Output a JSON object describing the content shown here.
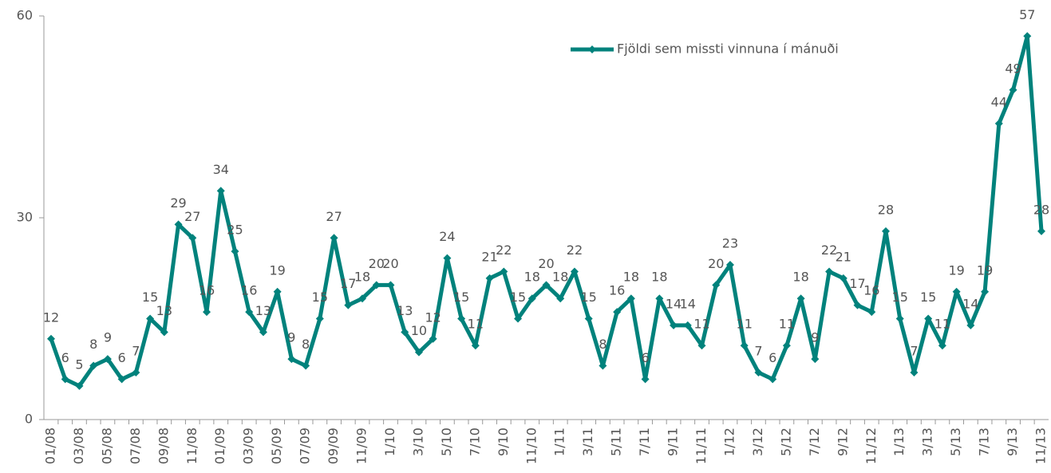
{
  "chart_data": {
    "type": "line",
    "categories": [
      "01/08",
      null,
      "03/08",
      null,
      "05/08",
      null,
      "07/08",
      null,
      "09/08",
      null,
      "11/08",
      null,
      "01/09",
      null,
      "03/09",
      null,
      "05/09",
      null,
      "07/09",
      null,
      "09/09",
      null,
      "11/09",
      null,
      "1/10",
      null,
      "3/10",
      null,
      "5/10",
      null,
      "7/10",
      null,
      "9/10",
      null,
      "11/10",
      null,
      "1/11",
      null,
      "3/11",
      null,
      "5/11",
      null,
      "7/11",
      null,
      "9/11",
      null,
      "11/11",
      null,
      "1/12",
      null,
      "3/12",
      null,
      "5/12",
      null,
      "7/12",
      null,
      "9/12",
      null,
      "11/12",
      null,
      "1/13",
      null,
      "3/13",
      null,
      "5/13",
      null,
      "7/13",
      null,
      "9/13",
      null,
      "11/13"
    ],
    "series": [
      {
        "name": "Fjöldi sem missti vinnuna í mánuði",
        "color": "#00827c",
        "values": [
          12,
          6,
          5,
          8,
          9,
          6,
          7,
          15,
          13,
          29,
          27,
          16,
          34,
          25,
          16,
          13,
          19,
          9,
          8,
          15,
          27,
          17,
          18,
          20,
          20,
          13,
          10,
          12,
          24,
          15,
          11,
          21,
          22,
          15,
          18,
          20,
          18,
          22,
          15,
          8,
          16,
          18,
          6,
          18,
          14,
          14,
          11,
          20,
          23,
          11,
          7,
          6,
          11,
          18,
          9,
          22,
          21,
          17,
          16,
          28,
          15,
          7,
          15,
          11,
          19,
          14,
          19,
          44,
          49,
          57,
          28
        ]
      }
    ],
    "ylim": [
      0,
      60
    ],
    "yticks": [
      0,
      30,
      60
    ],
    "legend": "top-right"
  }
}
